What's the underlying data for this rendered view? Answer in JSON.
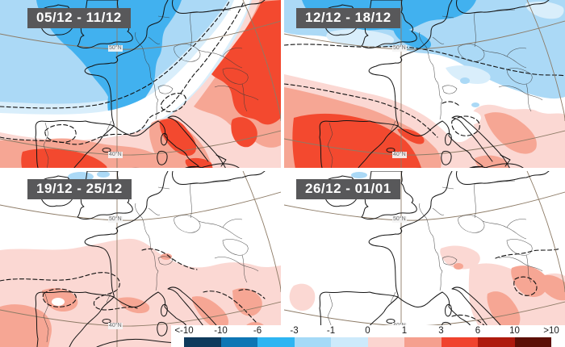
{
  "panels": [
    {
      "label": "05/12 - 11/12"
    },
    {
      "label": "12/12 - 18/12"
    },
    {
      "label": "19/12 - 25/12"
    },
    {
      "label": "26/12 - 01/01"
    }
  ],
  "map": {
    "lat_labels": [
      "50°N",
      "40°N"
    ],
    "region": "Europe"
  },
  "colorbar": {
    "ticks": [
      "<-10",
      "-10",
      "-6",
      "-3",
      "-1",
      "0",
      "1",
      "3",
      "6",
      "10",
      ">10"
    ],
    "colors": [
      "#0e3a5c",
      "#0e76b4",
      "#2eb5f2",
      "#a5daf7",
      "#cdeafb",
      "#fbd5d0",
      "#f5a08f",
      "#f0432e",
      "#ae1a0e",
      "#5c0f06"
    ],
    "anomaly_palette": {
      "cold_strong": "#41b1ef",
      "cold_light": "#abd9f6",
      "cold_faint": "#d9eefb",
      "neutral": "#ffffff",
      "warm_faint": "#fbd8d3",
      "warm_light": "#f6a694",
      "warm_strong": "#f3492f"
    }
  }
}
